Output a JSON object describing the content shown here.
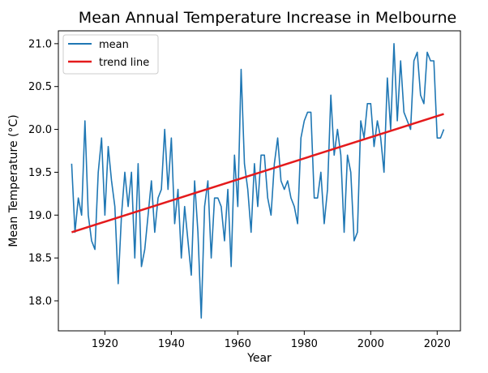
{
  "chart_data": {
    "type": "line",
    "title": "Mean Annual Temperature Increase in Melbourne",
    "xlabel": "Year",
    "ylabel": "Mean Temperature (°C)",
    "xlim": [
      1906,
      2027
    ],
    "ylim": [
      17.65,
      21.15
    ],
    "xticks": [
      1920,
      1940,
      1960,
      1980,
      2000,
      2020
    ],
    "yticks": [
      18.0,
      18.5,
      19.0,
      19.5,
      20.0,
      20.5,
      21.0
    ],
    "legend_position": "top-left",
    "grid": false,
    "series": [
      {
        "name": "mean",
        "color": "#1f77b4",
        "x": [
          1910,
          1911,
          1912,
          1913,
          1914,
          1915,
          1916,
          1917,
          1918,
          1919,
          1920,
          1921,
          1922,
          1923,
          1924,
          1925,
          1926,
          1927,
          1928,
          1929,
          1930,
          1931,
          1932,
          1933,
          1934,
          1935,
          1936,
          1937,
          1938,
          1939,
          1940,
          1941,
          1942,
          1943,
          1944,
          1945,
          1946,
          1947,
          1948,
          1949,
          1950,
          1951,
          1952,
          1953,
          1954,
          1955,
          1956,
          1957,
          1958,
          1959,
          1960,
          1961,
          1962,
          1963,
          1964,
          1965,
          1966,
          1967,
          1968,
          1969,
          1970,
          1971,
          1972,
          1973,
          1974,
          1975,
          1976,
          1977,
          1978,
          1979,
          1980,
          1981,
          1982,
          1983,
          1984,
          1985,
          1986,
          1987,
          1988,
          1989,
          1990,
          1991,
          1992,
          1993,
          1994,
          1995,
          1996,
          1997,
          1998,
          1999,
          2000,
          2001,
          2002,
          2003,
          2004,
          2005,
          2006,
          2007,
          2008,
          2009,
          2010,
          2011,
          2012,
          2013,
          2014,
          2015,
          2016,
          2017,
          2018,
          2019,
          2020,
          2021,
          2022
        ],
        "y": [
          19.6,
          18.8,
          19.2,
          19.0,
          20.1,
          19.0,
          18.7,
          18.6,
          19.5,
          19.9,
          19.0,
          19.8,
          19.4,
          19.1,
          18.2,
          19.0,
          19.5,
          19.1,
          19.5,
          18.5,
          19.6,
          18.4,
          18.6,
          19.0,
          19.4,
          18.8,
          19.2,
          19.3,
          20.0,
          19.3,
          19.9,
          18.9,
          19.3,
          18.5,
          19.1,
          18.7,
          18.3,
          19.4,
          18.8,
          17.8,
          19.1,
          19.4,
          18.5,
          19.2,
          19.2,
          19.1,
          18.7,
          19.3,
          18.4,
          19.7,
          19.1,
          20.7,
          19.6,
          19.3,
          18.8,
          19.6,
          19.1,
          19.7,
          19.7,
          19.2,
          19.0,
          19.6,
          19.9,
          19.4,
          19.3,
          19.4,
          19.2,
          19.1,
          18.9,
          19.9,
          20.1,
          20.2,
          20.2,
          19.2,
          19.2,
          19.5,
          18.9,
          19.3,
          20.4,
          19.7,
          20.0,
          19.7,
          18.8,
          19.7,
          19.5,
          18.7,
          18.8,
          20.1,
          19.9,
          20.3,
          20.3,
          19.8,
          20.1,
          19.9,
          19.5,
          20.6,
          20.0,
          21.0,
          20.1,
          20.8,
          20.2,
          20.1,
          20.0,
          20.8,
          20.9,
          20.4,
          20.3,
          20.9,
          20.8,
          20.8,
          19.9,
          19.9,
          20.0
        ]
      },
      {
        "name": "trend line",
        "color": "#e41a1c",
        "x": [
          1910,
          2022
        ],
        "y": [
          18.8,
          20.18
        ]
      }
    ]
  }
}
